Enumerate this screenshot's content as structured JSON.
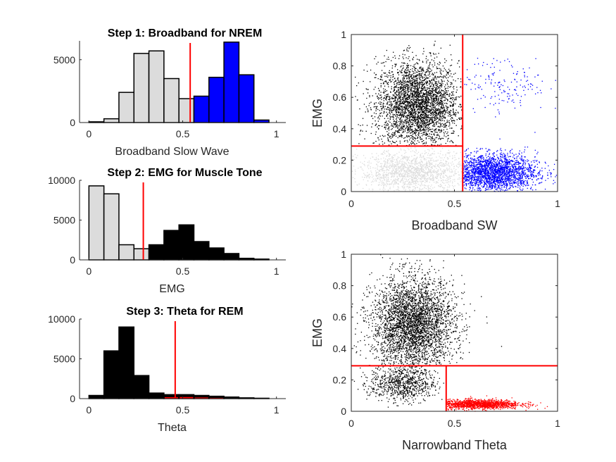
{
  "colors": {
    "nrem": "#0000ff",
    "rem": "#ff0000",
    "wake": "#000000",
    "excluded": "#dcdcdc",
    "threshold": "#ff0000"
  },
  "chart_data": [
    {
      "type": "bar",
      "title": "Step 1: Broadband for NREM",
      "xlabel": "Broadband Slow Wave",
      "x_ticks": [
        "0",
        "0.5",
        "1"
      ],
      "y_ticks": [
        "0",
        "5000"
      ],
      "xlim": [
        -0.05,
        1.05
      ],
      "ylim": [
        0,
        6500
      ],
      "bin_centers": [
        0.04,
        0.12,
        0.2,
        0.28,
        0.36,
        0.44,
        0.52,
        0.6,
        0.68,
        0.76,
        0.84,
        0.92
      ],
      "bin_width": 0.08,
      "values": [
        60,
        300,
        2400,
        5500,
        5700,
        3500,
        1900,
        2100,
        3600,
        6400,
        3800,
        200
      ],
      "bar_colors": [
        "excluded",
        "excluded",
        "excluded",
        "excluded",
        "excluded",
        "excluded",
        "excluded",
        "nrem",
        "nrem",
        "nrem",
        "nrem",
        "nrem"
      ],
      "threshold": 0.54
    },
    {
      "type": "bar",
      "title": "Step 2: EMG for Muscle Tone",
      "xlabel": "EMG",
      "x_ticks": [
        "0",
        "0.5",
        "1"
      ],
      "y_ticks": [
        "0",
        "5000",
        "10000"
      ],
      "xlim": [
        -0.05,
        1.05
      ],
      "ylim": [
        0,
        10000
      ],
      "bin_centers": [
        0.04,
        0.12,
        0.2,
        0.28,
        0.36,
        0.44,
        0.52,
        0.6,
        0.68,
        0.76,
        0.84,
        0.92
      ],
      "bin_width": 0.08,
      "values": [
        9300,
        8300,
        1900,
        1400,
        1900,
        3700,
        4400,
        2300,
        1500,
        800,
        200,
        100
      ],
      "bar_colors": [
        "excluded",
        "excluded",
        "excluded",
        "excluded",
        "wake",
        "wake",
        "wake",
        "wake",
        "wake",
        "wake",
        "wake",
        "wake"
      ],
      "threshold": 0.29
    },
    {
      "type": "bar",
      "title": "Step 3: Theta for REM",
      "xlabel": "Theta",
      "x_ticks": [
        "0",
        "0.5",
        "1"
      ],
      "y_ticks": [
        "0",
        "5000",
        "10000"
      ],
      "xlim": [
        -0.05,
        1.05
      ],
      "ylim": [
        0,
        10000
      ],
      "bin_centers": [
        0.04,
        0.12,
        0.2,
        0.28,
        0.36,
        0.44,
        0.52,
        0.6,
        0.68,
        0.76,
        0.84,
        0.92
      ],
      "bin_width": 0.08,
      "values": [
        400,
        6000,
        9000,
        2900,
        700,
        500,
        500,
        400,
        300,
        200,
        100,
        50
      ],
      "bar_colors": [
        "wake",
        "wake",
        "wake",
        "wake",
        "wake",
        "wake",
        "wake",
        "wake",
        "wake",
        "wake",
        "wake",
        "wake"
      ],
      "threshold": 0.46,
      "rem_overlay": [
        0,
        0,
        0,
        0,
        0,
        0.35,
        0.4,
        0.35,
        0.3,
        0.2,
        0.1,
        0.05
      ]
    },
    {
      "type": "scatter",
      "xlabel": "Broadband SW",
      "ylabel": "EMG",
      "x_ticks": [
        "0",
        "0.5",
        "1"
      ],
      "y_ticks": [
        "0",
        "0.2",
        "0.4",
        "0.6",
        "0.8",
        "1"
      ],
      "xlim": [
        0,
        1
      ],
      "ylim": [
        0,
        1
      ],
      "threshold_x": 0.54,
      "threshold_y": 0.29,
      "clusters": [
        {
          "color": "wake",
          "cx": 0.32,
          "cy": 0.55,
          "sx": 0.1,
          "sy": 0.14,
          "n": 3200,
          "xmin": 0.0,
          "xmax": 0.54,
          "ymin": 0.29,
          "ymax": 1.0
        },
        {
          "color": "excluded",
          "cx": 0.3,
          "cy": 0.12,
          "sx": 0.13,
          "sy": 0.07,
          "n": 1500,
          "xmin": 0.0,
          "xmax": 0.54,
          "ymin": 0.0,
          "ymax": 0.29
        },
        {
          "color": "nrem",
          "cx": 0.68,
          "cy": 0.12,
          "sx": 0.11,
          "sy": 0.06,
          "n": 2200,
          "xmin": 0.54,
          "xmax": 1.0,
          "ymin": 0.0,
          "ymax": 0.45
        },
        {
          "color": "nrem",
          "cx": 0.75,
          "cy": 0.7,
          "sx": 0.1,
          "sy": 0.1,
          "n": 160,
          "xmin": 0.54,
          "xmax": 1.0,
          "ymin": 0.45,
          "ymax": 0.85
        }
      ]
    },
    {
      "type": "scatter",
      "xlabel": "Narrowband Theta",
      "ylabel": "EMG",
      "x_ticks": [
        "0",
        "0.5",
        "1"
      ],
      "y_ticks": [
        "0",
        "0.2",
        "0.4",
        "0.6",
        "0.8",
        "1"
      ],
      "xlim": [
        0,
        1
      ],
      "ylim": [
        0,
        1
      ],
      "threshold_x": 0.46,
      "threshold_y": 0.29,
      "clusters": [
        {
          "color": "wake",
          "cx": 0.3,
          "cy": 0.55,
          "sx": 0.1,
          "sy": 0.15,
          "n": 3400,
          "xmin": 0.0,
          "xmax": 0.8,
          "ymin": 0.29,
          "ymax": 1.0
        },
        {
          "color": "wake",
          "cx": 0.25,
          "cy": 0.18,
          "sx": 0.08,
          "sy": 0.06,
          "n": 800,
          "xmin": 0.0,
          "xmax": 0.46,
          "ymin": 0.0,
          "ymax": 0.29
        },
        {
          "color": "rem",
          "cx": 0.62,
          "cy": 0.045,
          "sx": 0.1,
          "sy": 0.015,
          "n": 1300,
          "xmin": 0.46,
          "xmax": 1.0,
          "ymin": 0.0,
          "ymax": 0.12
        }
      ]
    }
  ]
}
